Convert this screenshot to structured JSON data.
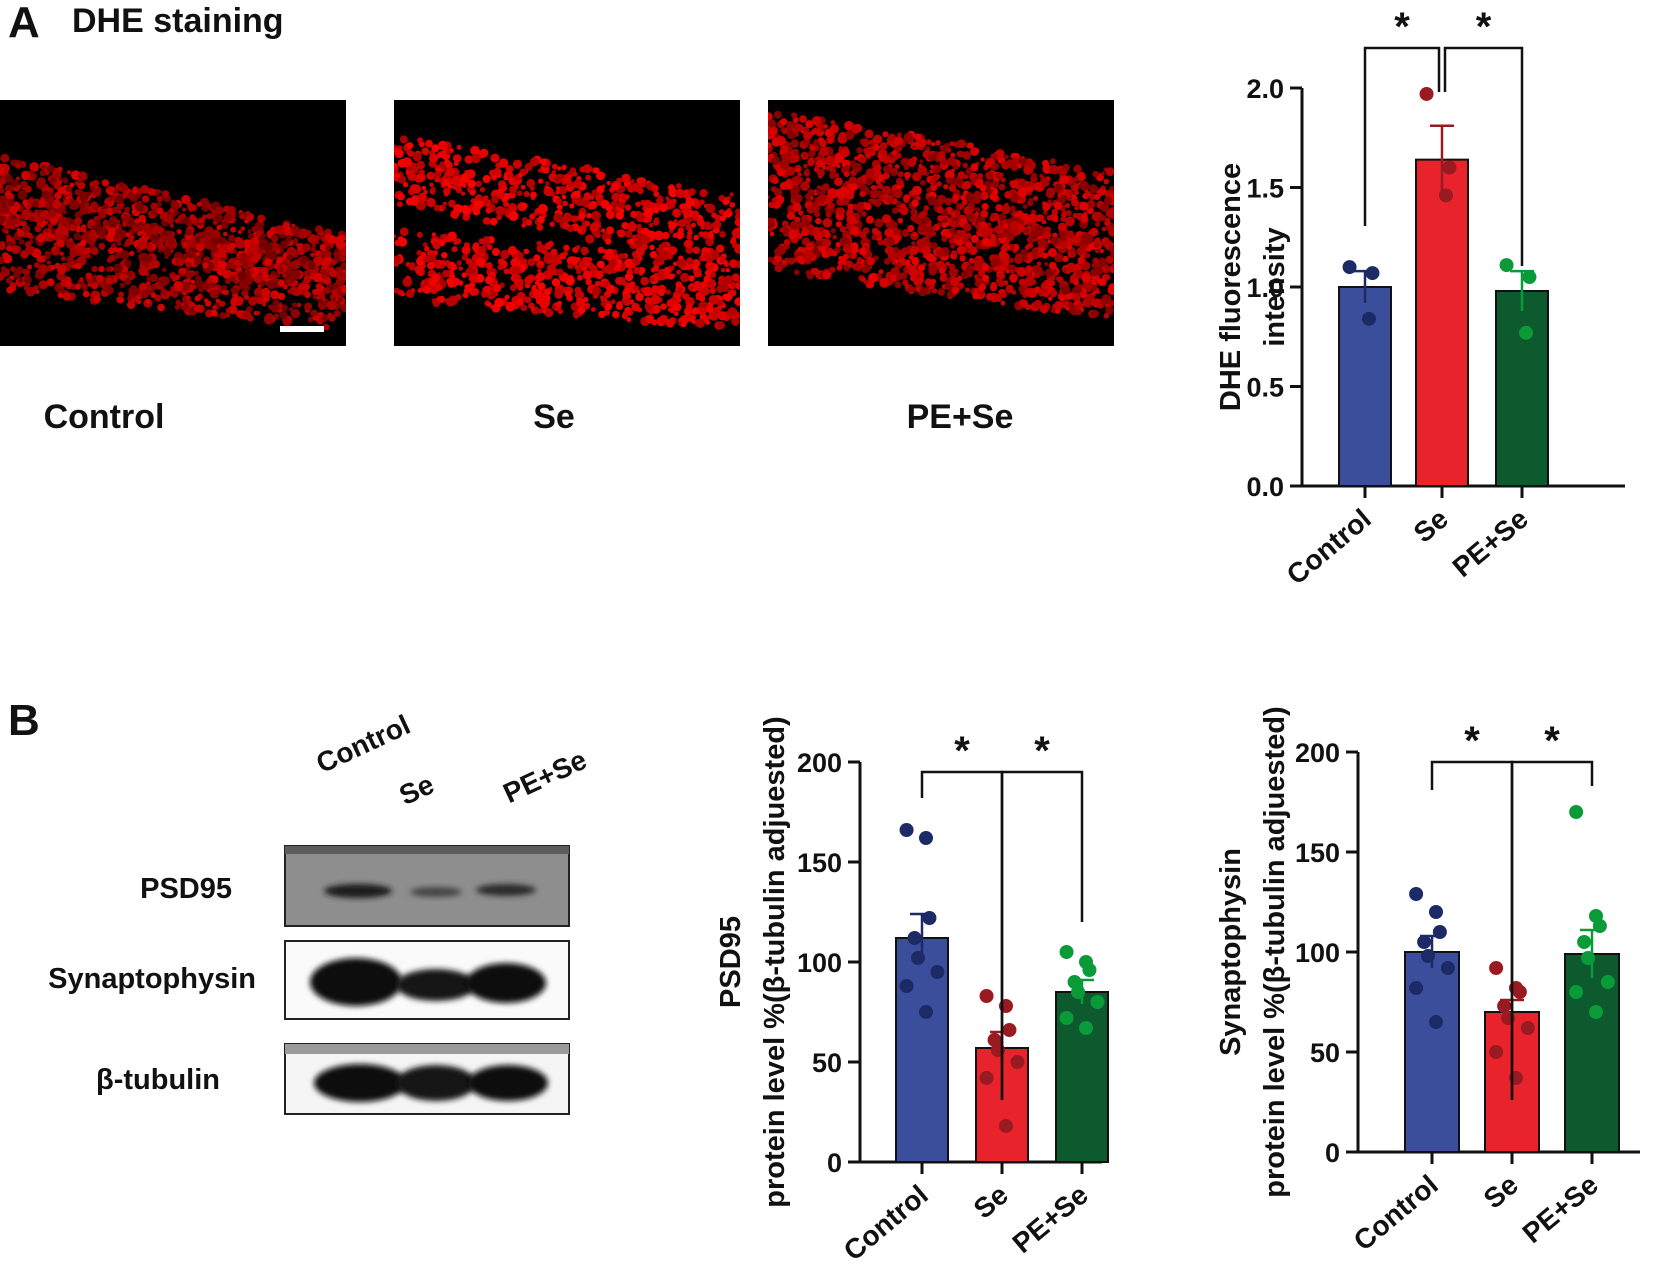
{
  "panel_a": {
    "letter": "A",
    "title": "DHE  staining",
    "image_labels": [
      "Control",
      "Se",
      "PE+Se"
    ]
  },
  "panel_b": {
    "letter": "B",
    "lane_labels": [
      "Control",
      "Se",
      "PE+Se"
    ],
    "blot_labels": [
      "PSD95",
      "Synaptophysin",
      "β-tubulin"
    ]
  },
  "colors": {
    "control": "#3b4e9c",
    "se": "#e8232b",
    "pe_se": "#0d5a2e",
    "axis": "#111111"
  },
  "chart_data": [
    {
      "id": "dhe",
      "type": "bar",
      "categories": [
        "Control",
        "Se",
        "PE+Se"
      ],
      "values": [
        1.0,
        1.64,
        0.98
      ],
      "errors": [
        0.08,
        0.17,
        0.1
      ],
      "points": [
        [
          1.1,
          0.84,
          1.07
        ],
        [
          1.97,
          1.46,
          1.6
        ],
        [
          1.11,
          0.77,
          1.05
        ]
      ],
      "ylabel_lines": [
        "DHE fluorescence",
        "intensity"
      ],
      "ylim": [
        0,
        2.0
      ],
      "yticks": [
        "0.0",
        "0.5",
        "1.0",
        "1.5",
        "2.0"
      ],
      "significance": [
        "*",
        "*"
      ]
    },
    {
      "id": "psd95",
      "type": "bar",
      "categories": [
        "Control",
        "Se",
        "PE+Se"
      ],
      "values": [
        112,
        57,
        85
      ],
      "errors": [
        12,
        8,
        6
      ],
      "points": [
        [
          166,
          162,
          122,
          112,
          102,
          95,
          88,
          75
        ],
        [
          83,
          78,
          66,
          61,
          56,
          50,
          42,
          18
        ],
        [
          105,
          100,
          96,
          90,
          85,
          80,
          72,
          67
        ]
      ],
      "ylabel_lines": [
        "PSD95",
        "protein level %(β-tubulin adjuested)"
      ],
      "ylim": [
        0,
        200
      ],
      "yticks": [
        "0",
        "50",
        "100",
        "150",
        "200"
      ],
      "significance": [
        "*",
        "*"
      ]
    },
    {
      "id": "synaptophysin",
      "type": "bar",
      "categories": [
        "Control",
        "Se",
        "PE+Se"
      ],
      "values": [
        100,
        70,
        99
      ],
      "errors": [
        8,
        6,
        12
      ],
      "points": [
        [
          129,
          120,
          110,
          105,
          98,
          92,
          82,
          65
        ],
        [
          92,
          82,
          80,
          73,
          67,
          62,
          50,
          37
        ],
        [
          170,
          118,
          113,
          105,
          97,
          85,
          80,
          70
        ]
      ],
      "ylabel_lines": [
        "Synaptophysin",
        "protein level %(β-tubulin adjuested)"
      ],
      "ylim": [
        0,
        200
      ],
      "yticks": [
        "0",
        "50",
        "100",
        "150",
        "200"
      ],
      "significance": [
        "*",
        "*"
      ]
    }
  ]
}
